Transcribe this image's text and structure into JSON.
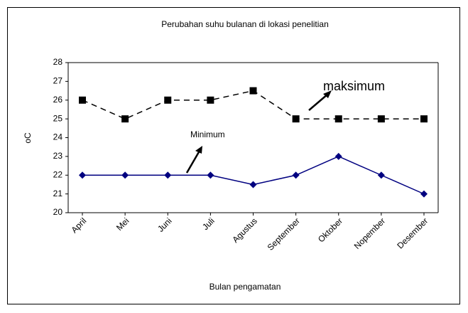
{
  "chart_data": {
    "type": "line",
    "title": "Perubahan suhu bulanan di lokasi penelitian",
    "x_label": "Bulan pengamatan",
    "y_label": "oC",
    "categories": [
      "April",
      "Mei",
      "Juni",
      "Juli",
      "Agustus",
      "September",
      "Oktober",
      "Nopember",
      "Desember"
    ],
    "series": [
      {
        "name": "maksimum",
        "color": "#000000",
        "dash": true,
        "marker": "square",
        "values": [
          26,
          25,
          26,
          26,
          26.5,
          25,
          25,
          25,
          25
        ]
      },
      {
        "name": "Minimum",
        "color": "#000080",
        "dash": false,
        "marker": "diamond",
        "values": [
          22,
          22,
          22,
          22,
          21.5,
          22,
          23,
          22,
          21
        ]
      }
    ],
    "ylim": [
      20,
      28
    ],
    "yticks": [
      20,
      21,
      22,
      23,
      24,
      25,
      26,
      27,
      28
    ],
    "grid": false
  }
}
